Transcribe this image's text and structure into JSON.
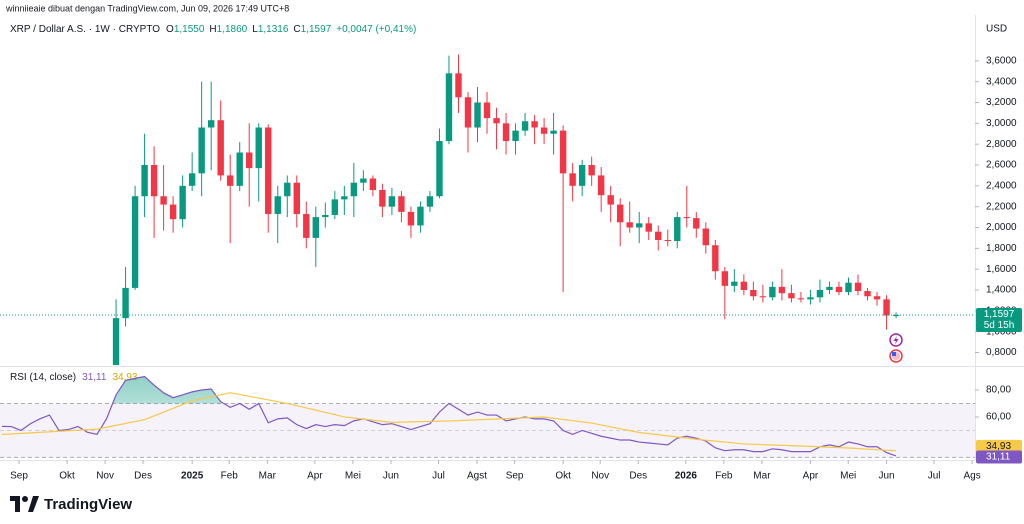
{
  "header": {
    "title": "winniieaie dibuat dengan TradingView.com, Jun 09, 2026 17:49 UTC+8",
    "brand": "TradingView"
  },
  "chart_data": [
    {
      "type": "candlestick",
      "title": "XRP / Dollar A.S. · 1W · CRYPTO",
      "ohlc_legend": [
        {
          "key": "O",
          "label": "1,1550"
        },
        {
          "key": "H",
          "label": "1,1860"
        },
        {
          "key": "L",
          "label": "1,1316"
        },
        {
          "key": "C",
          "label": "1,1597"
        }
      ],
      "change": "+0,0047 (+0,41%)",
      "currency": "USD",
      "up_color": "#089981",
      "down_color": "#f23645",
      "open": [
        null,
        null,
        null,
        null,
        null,
        null,
        null,
        null,
        null,
        null,
        null,
        null,
        0.62,
        1.13,
        1.42,
        2.3,
        2.6,
        2.3,
        2.22,
        2.08,
        2.4,
        2.52,
        2.96,
        3.03,
        2.5,
        2.4,
        2.72,
        2.57,
        2.96,
        2.13,
        2.3,
        2.43,
        2.13,
        1.9,
        2.1,
        2.12,
        2.27,
        2.3,
        2.43,
        2.47,
        2.36,
        2.2,
        2.3,
        2.15,
        2.02,
        2.2,
        2.3,
        2.83,
        3.48,
        3.25,
        2.96,
        3.2,
        3.05,
        3.0,
        2.83,
        2.93,
        3.02,
        2.96,
        2.9,
        2.93,
        2.52,
        2.4,
        2.6,
        2.5,
        2.31,
        2.22,
        2.05,
        2.0,
        2.04,
        1.96,
        1.88,
        1.87,
        2.1,
        2.09,
        1.99,
        1.83,
        1.58,
        1.44,
        1.48,
        1.4,
        1.34,
        1.33,
        1.43,
        1.37,
        1.32,
        1.31,
        1.33,
        1.4,
        1.43,
        1.38,
        1.47,
        1.39,
        1.34,
        1.31,
        1.155
      ],
      "high": [
        null,
        null,
        null,
        null,
        null,
        null,
        null,
        null,
        null,
        null,
        null,
        null,
        1.31,
        1.62,
        2.4,
        2.9,
        2.78,
        2.6,
        2.3,
        2.5,
        2.72,
        3.4,
        3.4,
        3.22,
        2.7,
        2.82,
        3.0,
        3.0,
        2.99,
        2.4,
        2.5,
        2.5,
        2.25,
        2.2,
        2.24,
        2.35,
        2.4,
        2.62,
        2.55,
        2.5,
        2.42,
        2.38,
        2.35,
        2.2,
        2.25,
        2.35,
        2.95,
        3.65,
        3.66,
        3.3,
        3.35,
        3.3,
        3.15,
        3.1,
        3.0,
        3.1,
        3.08,
        3.05,
        3.1,
        2.98,
        2.62,
        2.65,
        2.68,
        2.58,
        2.4,
        2.28,
        2.25,
        2.15,
        2.1,
        2.02,
        1.98,
        2.15,
        2.4,
        2.15,
        2.05,
        1.88,
        1.62,
        1.6,
        1.55,
        1.48,
        1.45,
        1.48,
        1.6,
        1.45,
        1.38,
        1.4,
        1.5,
        1.48,
        1.48,
        1.52,
        1.55,
        1.42,
        1.38,
        1.35,
        1.186
      ],
      "low": [
        null,
        null,
        null,
        null,
        null,
        null,
        null,
        null,
        null,
        null,
        null,
        null,
        0.6,
        1.05,
        1.4,
        2.1,
        1.9,
        1.97,
        1.95,
        2.0,
        2.35,
        2.3,
        2.55,
        2.45,
        1.85,
        2.35,
        2.2,
        2.25,
        1.95,
        1.85,
        2.1,
        2.0,
        1.8,
        1.62,
        2.0,
        2.08,
        2.12,
        2.1,
        2.35,
        2.3,
        2.1,
        2.12,
        2.05,
        1.9,
        1.95,
        2.15,
        2.28,
        2.8,
        3.1,
        2.72,
        2.82,
        2.9,
        2.75,
        2.7,
        2.7,
        2.88,
        2.8,
        2.8,
        2.7,
        1.38,
        2.25,
        2.3,
        2.4,
        2.15,
        2.05,
        1.82,
        1.95,
        1.85,
        1.88,
        1.78,
        1.82,
        1.8,
        2.0,
        1.9,
        1.75,
        1.5,
        1.12,
        1.38,
        1.35,
        1.3,
        1.28,
        1.3,
        1.3,
        1.28,
        1.28,
        1.26,
        1.28,
        1.36,
        1.35,
        1.35,
        1.35,
        1.3,
        1.25,
        1.02,
        1.1316
      ],
      "close": [
        null,
        null,
        null,
        null,
        null,
        null,
        null,
        null,
        null,
        null,
        null,
        null,
        1.13,
        1.42,
        2.3,
        2.6,
        2.3,
        2.22,
        2.08,
        2.4,
        2.52,
        2.96,
        3.03,
        2.5,
        2.4,
        2.72,
        2.57,
        2.96,
        2.13,
        2.3,
        2.43,
        2.13,
        1.9,
        2.1,
        2.12,
        2.27,
        2.3,
        2.43,
        2.47,
        2.36,
        2.2,
        2.3,
        2.15,
        2.02,
        2.2,
        2.3,
        2.83,
        3.48,
        3.25,
        2.96,
        3.2,
        3.05,
        3.0,
        2.83,
        2.93,
        3.02,
        2.96,
        2.9,
        2.93,
        2.52,
        2.4,
        2.6,
        2.5,
        2.31,
        2.22,
        2.05,
        2.0,
        2.04,
        1.96,
        1.88,
        1.87,
        2.1,
        2.09,
        1.99,
        1.83,
        1.58,
        1.44,
        1.48,
        1.4,
        1.34,
        1.33,
        1.43,
        1.37,
        1.32,
        1.31,
        1.33,
        1.4,
        1.43,
        1.38,
        1.47,
        1.39,
        1.34,
        1.31,
        1.155,
        1.1597
      ],
      "last_price": {
        "value": 1.1597,
        "label": "1,1597"
      },
      "countdown": "5d 15h",
      "xlim": [
        -0.2,
        102.3
      ],
      "xticks": [
        {
          "value": 1.8,
          "label": "Sep"
        },
        {
          "value": 6.85,
          "label": "Okt"
        },
        {
          "value": 10.85,
          "label": "Nov"
        },
        {
          "value": 14.84,
          "label": "Des"
        },
        {
          "value": 20.0,
          "label": "2025"
        },
        {
          "value": 23.9,
          "label": "Feb"
        },
        {
          "value": 27.9,
          "label": "Mar"
        },
        {
          "value": 32.9,
          "label": "Apr"
        },
        {
          "value": 36.9,
          "label": "Mei"
        },
        {
          "value": 40.9,
          "label": "Jun"
        },
        {
          "value": 45.9,
          "label": "Jul"
        },
        {
          "value": 49.95,
          "label": "Agst"
        },
        {
          "value": 53.9,
          "label": "Sep"
        },
        {
          "value": 59.0,
          "label": "Okt"
        },
        {
          "value": 62.9,
          "label": "Nov"
        },
        {
          "value": 66.9,
          "label": "Des"
        },
        {
          "value": 71.9,
          "label": "2026"
        },
        {
          "value": 75.9,
          "label": "Feb"
        },
        {
          "value": 79.9,
          "label": "Mar"
        },
        {
          "value": 85.0,
          "label": "Apr"
        },
        {
          "value": 88.97,
          "label": "Mei"
        },
        {
          "value": 93.0,
          "label": "Jun"
        },
        {
          "value": 98.0,
          "label": "Jul"
        },
        {
          "value": 102.0,
          "label": "Ags"
        }
      ],
      "ylim": [
        0.68,
        4.04
      ],
      "yticks": [
        {
          "value": 3.6,
          "label": "3,6000"
        },
        {
          "value": 3.4,
          "label": "3,4000"
        },
        {
          "value": 3.2,
          "label": "3,2000"
        },
        {
          "value": 3.0,
          "label": "3,0000"
        },
        {
          "value": 2.8,
          "label": "2,8000"
        },
        {
          "value": 2.6,
          "label": "2,6000"
        },
        {
          "value": 2.4,
          "label": "2,4000"
        },
        {
          "value": 2.2,
          "label": "2,2000"
        },
        {
          "value": 2.0,
          "label": "2,0000"
        },
        {
          "value": 1.8,
          "label": "1,8000"
        },
        {
          "value": 1.6,
          "label": "1,6000"
        },
        {
          "value": 1.4,
          "label": "1,4000"
        },
        {
          "value": 1.2,
          "label": "1,2000"
        },
        {
          "value": 1.0,
          "label": "1,0000"
        },
        {
          "value": 0.8,
          "label": "0,8000"
        }
      ],
      "grid": false
    },
    {
      "type": "line",
      "title": "RSI (14, close)",
      "ylim": [
        28.1,
        96.3
      ],
      "yticks": [
        {
          "value": 80,
          "label": "80,00"
        },
        {
          "value": 60,
          "label": "60,00"
        }
      ],
      "bands": [
        70,
        50,
        30
      ],
      "overbought_color": "#089981",
      "series": [
        {
          "color": "#7e57c2",
          "last_label": "31,11",
          "values": [
            53.0,
            52.9,
            50.0,
            55.0,
            58.6,
            61.4,
            50.0,
            50.7,
            52.9,
            48.6,
            47.1,
            58.6,
            76.4,
            87.1,
            88.6,
            90.0,
            83.6,
            77.9,
            74.3,
            76.4,
            78.6,
            80.0,
            80.7,
            71.4,
            67.1,
            70.0,
            65.7,
            70.0,
            55.7,
            58.6,
            59.3,
            54.3,
            51.4,
            54.3,
            52.9,
            54.3,
            53.6,
            57.1,
            58.6,
            56.4,
            54.3,
            55.0,
            52.9,
            50.7,
            52.9,
            55.0,
            63.6,
            70.0,
            65.7,
            61.4,
            63.6,
            61.4,
            61.4,
            57.1,
            58.6,
            60.0,
            58.6,
            58.6,
            57.1,
            50.0,
            47.1,
            50.0,
            47.9,
            45.7,
            44.3,
            42.9,
            42.9,
            41.4,
            40.7,
            40.0,
            39.3,
            44.3,
            45.7,
            44.3,
            42.1,
            37.1,
            35.0,
            35.7,
            35.7,
            34.3,
            34.3,
            36.4,
            35.7,
            34.3,
            34.3,
            34.3,
            37.9,
            39.3,
            37.9,
            41.4,
            40.0,
            37.9,
            37.9,
            33.6,
            31.11
          ]
        },
        {
          "color": "#f7c948",
          "last_label": "34,93",
          "x": [
            0,
            10,
            15,
            20,
            24,
            30,
            36,
            41,
            47,
            52,
            57,
            62,
            67,
            73,
            78,
            84,
            89,
            94
          ],
          "values": [
            47,
            51,
            58,
            72,
            78,
            70,
            60,
            56,
            57,
            58.5,
            60,
            55.5,
            48.5,
            43.5,
            40,
            38.5,
            37,
            34.93
          ]
        }
      ]
    }
  ]
}
